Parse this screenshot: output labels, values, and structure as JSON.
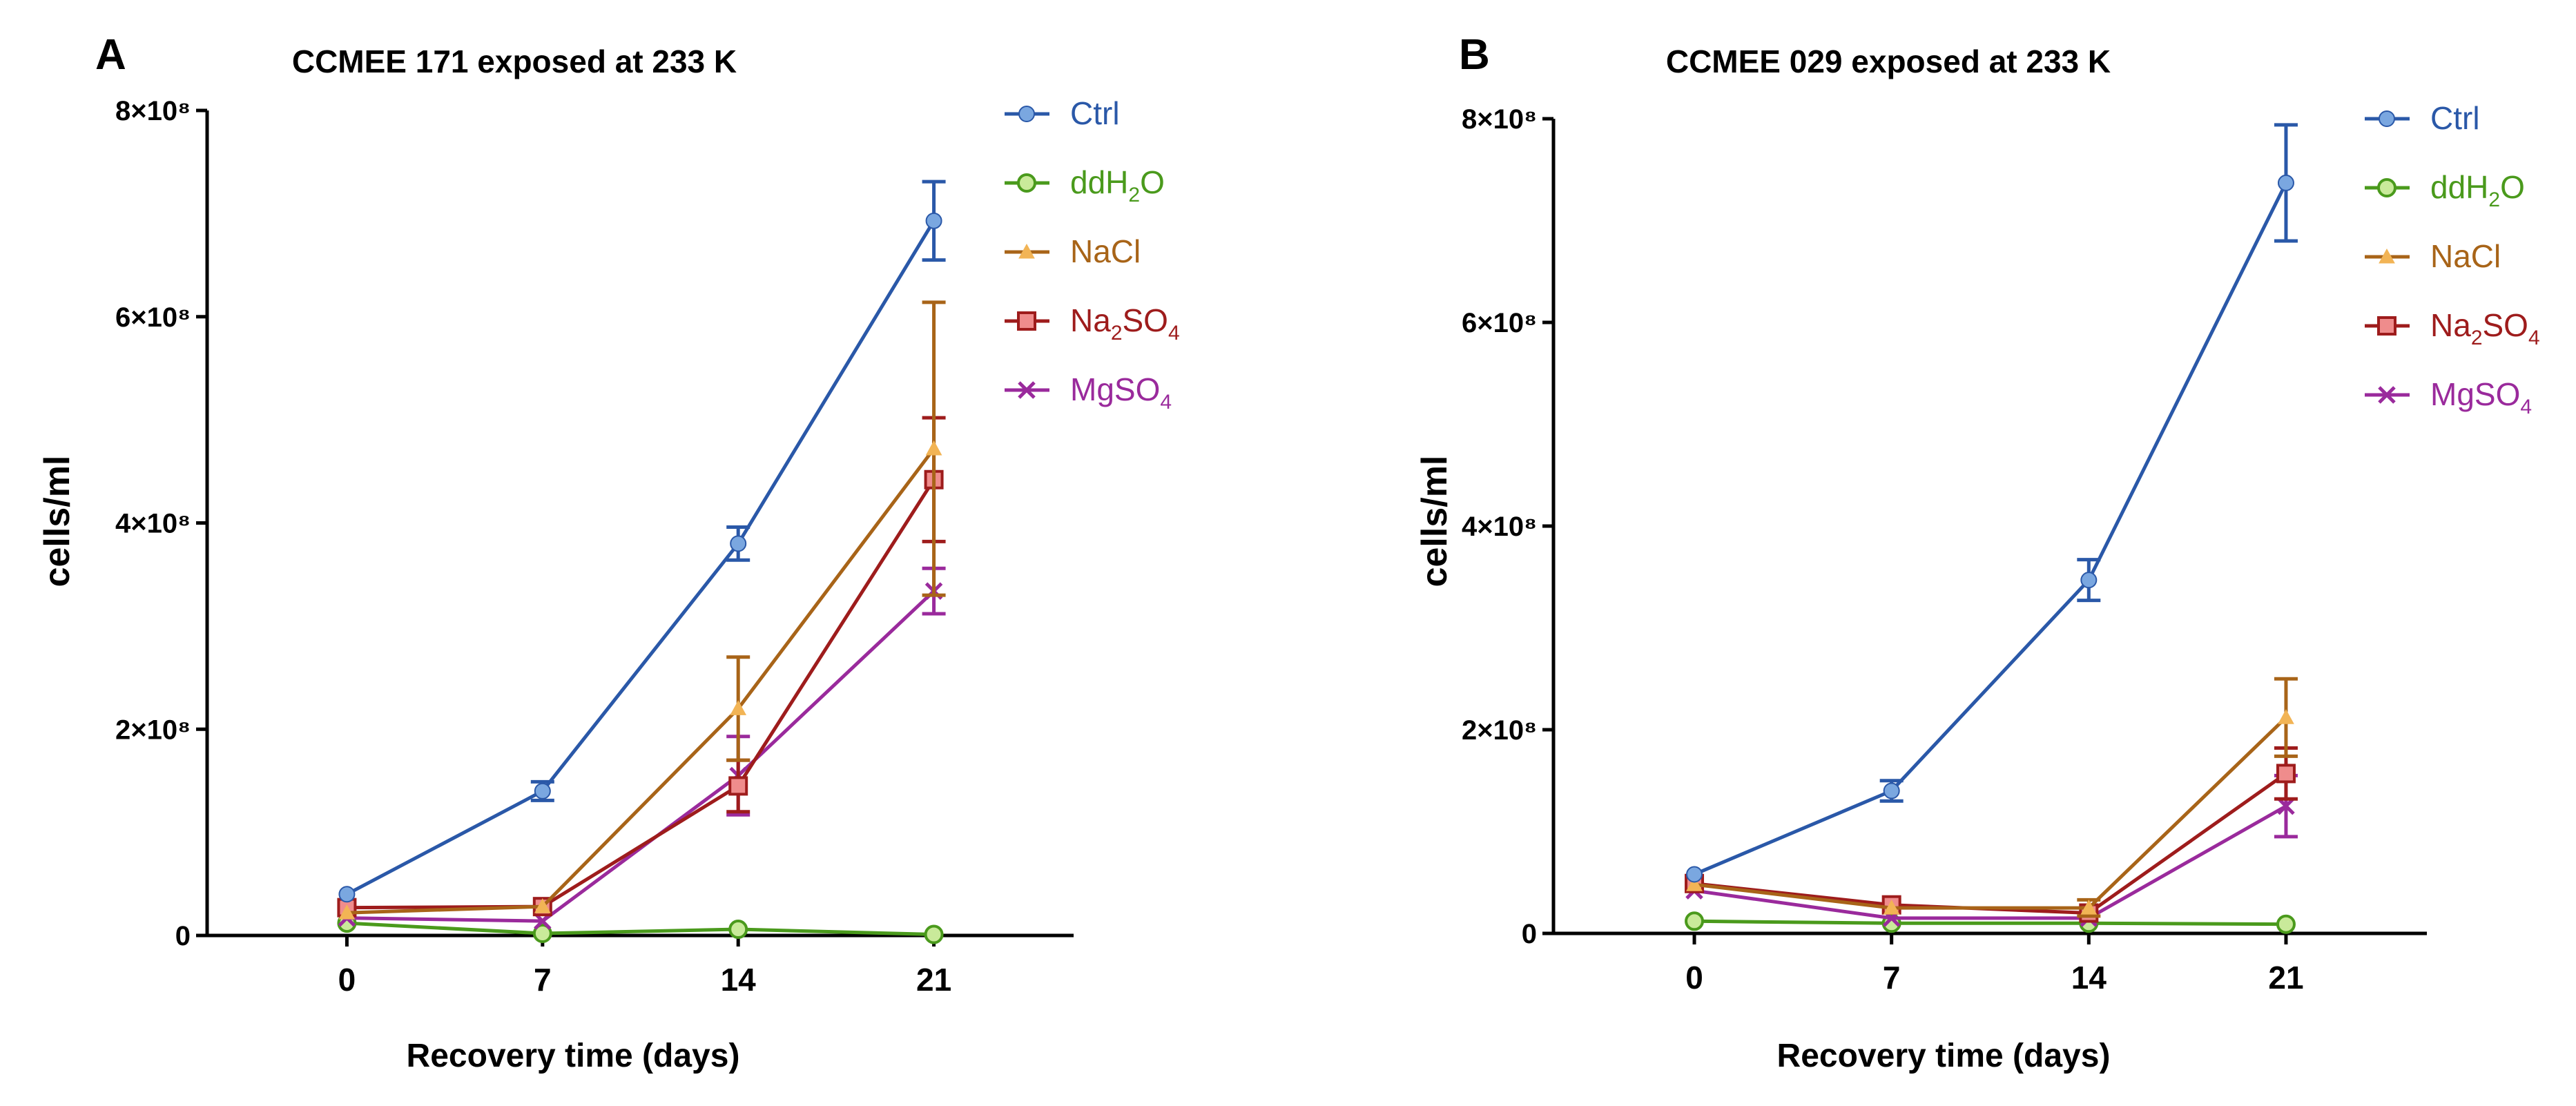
{
  "chart_data": [
    {
      "panel": "A",
      "type": "line",
      "title": "CCMEE 171 exposed at 233 K",
      "xlabel": "Recovery time (days)",
      "ylabel": "cells/ml",
      "x": [
        0,
        7,
        14,
        21
      ],
      "xlim": [
        -5,
        26
      ],
      "ylim": [
        0,
        800000000
      ],
      "yticks": [
        0,
        200000000,
        400000000,
        600000000,
        800000000
      ],
      "ytick_labels": [
        "0",
        "2×10⁸",
        "4×10⁸",
        "6×10⁸",
        "8×10⁸"
      ],
      "xtick_labels": [
        "0",
        "7",
        "14",
        "21"
      ],
      "series": [
        {
          "name": "Ctrl",
          "key": "ctrl",
          "values": [
            40000000,
            140000000,
            380000000,
            693000000
          ],
          "errors": [
            0,
            9000000,
            16000000,
            38000000
          ]
        },
        {
          "name": "ddH2O",
          "key": "ddh2o",
          "values": [
            12000000,
            2000000,
            6000000,
            1000000
          ],
          "errors": [
            0,
            0,
            0,
            0
          ]
        },
        {
          "name": "NaCl",
          "key": "nacl",
          "values": [
            22000000,
            28000000,
            220000000,
            472000000
          ],
          "errors": [
            0,
            0,
            50000000,
            142000000
          ]
        },
        {
          "name": "Na2SO4",
          "key": "na2so4",
          "values": [
            27000000,
            28000000,
            145000000,
            442000000
          ],
          "errors": [
            0,
            0,
            25000000,
            60000000
          ]
        },
        {
          "name": "MgSO4",
          "key": "mgso4",
          "values": [
            17000000,
            14000000,
            155000000,
            334000000
          ],
          "errors": [
            0,
            0,
            38000000,
            22000000
          ]
        }
      ]
    },
    {
      "panel": "B",
      "type": "line",
      "title": "CCMEE 029 exposed at 233 K",
      "xlabel": "Recovery time (days)",
      "ylabel": "cells/ml",
      "x": [
        0,
        7,
        14,
        21
      ],
      "xlim": [
        -5,
        26
      ],
      "ylim": [
        0,
        800000000
      ],
      "yticks": [
        0,
        200000000,
        400000000,
        600000000,
        800000000
      ],
      "ytick_labels": [
        "0",
        "2×10⁸",
        "4×10⁸",
        "6×10⁸",
        "8×10⁸"
      ],
      "xtick_labels": [
        "0",
        "7",
        "14",
        "21"
      ],
      "series": [
        {
          "name": "Ctrl",
          "key": "ctrl",
          "values": [
            58000000,
            140000000,
            347000000,
            737000000
          ],
          "errors": [
            0,
            10000000,
            20000000,
            57000000
          ]
        },
        {
          "name": "ddH2O",
          "key": "ddh2o",
          "values": [
            12000000,
            10000000,
            10000000,
            9000000
          ],
          "errors": [
            0,
            0,
            0,
            0
          ]
        },
        {
          "name": "NaCl",
          "key": "nacl",
          "values": [
            48000000,
            25000000,
            25000000,
            212000000
          ],
          "errors": [
            0,
            0,
            8000000,
            38000000
          ]
        },
        {
          "name": "Na2SO4",
          "key": "na2so4",
          "values": [
            49000000,
            28000000,
            20000000,
            157000000
          ],
          "errors": [
            0,
            0,
            0,
            25000000
          ]
        },
        {
          "name": "MgSO4",
          "key": "mgso4",
          "values": [
            42000000,
            15000000,
            15000000,
            125000000
          ],
          "errors": [
            0,
            0,
            0,
            30000000
          ]
        }
      ]
    }
  ],
  "legend": [
    {
      "key": "ctrl",
      "main": "Ctrl",
      "sub": "",
      "tail": "",
      "line_color": "#2a58a8",
      "marker_fill": "#7aa7e0",
      "marker_stroke": "#2a58a8",
      "marker": "circle",
      "text_color": "#2a58a8"
    },
    {
      "key": "ddh2o",
      "main": "ddH",
      "sub": "2",
      "tail": "O",
      "line_color": "#4a9a1c",
      "marker_fill": "#c9ea9a",
      "marker_stroke": "#4a9a1c",
      "marker": "circle-open",
      "text_color": "#4a9a1c"
    },
    {
      "key": "nacl",
      "main": "NaCl",
      "sub": "",
      "tail": "",
      "line_color": "#a86418",
      "marker_fill": "#f2b455",
      "marker_stroke": "#f2b455",
      "marker": "triangle",
      "text_color": "#a86418"
    },
    {
      "key": "na2so4",
      "main": "Na",
      "sub": "2",
      "tail": "SO",
      "sub2": "4",
      "line_color": "#9e1c1c",
      "marker_fill": "#ef8c8c",
      "marker_stroke": "#9e1c1c",
      "marker": "square",
      "text_color": "#9e1c1c"
    },
    {
      "key": "mgso4",
      "main": "MgSO",
      "sub": "4",
      "tail": "",
      "line_color": "#9a2a9c",
      "marker_fill": "#9a2a9c",
      "marker_stroke": "#9a2a9c",
      "marker": "cross",
      "text_color": "#9a2a9c"
    }
  ]
}
